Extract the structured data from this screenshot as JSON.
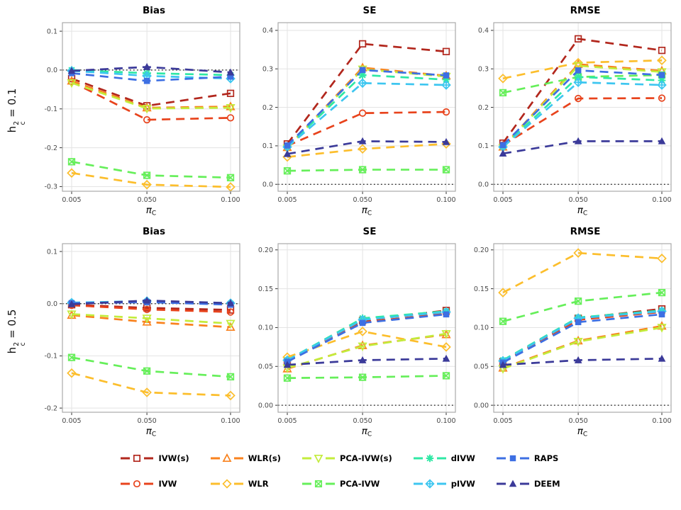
{
  "row_labels": [
    {
      "base": "h",
      "sup": "2",
      "sub": "c",
      "rest": "= 0.1"
    },
    {
      "base": "h",
      "sup": "2",
      "sub": "c",
      "rest": "= 0.5"
    }
  ],
  "x_axis": {
    "label_base": "π",
    "label_sub": "C",
    "tick_values": [
      0.005,
      0.05,
      0.1
    ],
    "tick_labels": [
      "0.005",
      "0.050",
      "0.100"
    ]
  },
  "methods": [
    {
      "id": "ivw-s",
      "label": "IVW(s)",
      "color": "#B2271D",
      "marker": "square-open"
    },
    {
      "id": "ivw",
      "label": "IVW",
      "color": "#E8431C",
      "marker": "circle-open"
    },
    {
      "id": "wlr-s",
      "label": "WLR(s)",
      "color": "#F9821E",
      "marker": "triangle-open"
    },
    {
      "id": "wlr",
      "label": "WLR",
      "color": "#FCBE2C",
      "marker": "diamond-open"
    },
    {
      "id": "pca-ivw-s",
      "label": "PCA-IVW(s)",
      "color": "#C3EC3C",
      "marker": "triangle-down-open"
    },
    {
      "id": "pca-ivw",
      "label": "PCA-IVW",
      "color": "#66EF5A",
      "marker": "square-x"
    },
    {
      "id": "divw",
      "label": "dIVW",
      "color": "#2FE8A5",
      "marker": "asterisk"
    },
    {
      "id": "pivw",
      "label": "pIVW",
      "color": "#3DC6F0",
      "marker": "diamond-plus"
    },
    {
      "id": "raps",
      "label": "RAPS",
      "color": "#3D6FE3",
      "marker": "square-filled"
    },
    {
      "id": "deem",
      "label": "DEEM",
      "color": "#3B3A99",
      "marker": "triangle-filled"
    }
  ],
  "legend": {
    "columns": [
      [
        "IVW(s)",
        "IVW"
      ],
      [
        "WLR(s)",
        "WLR"
      ],
      [
        "PCA-IVW(s)",
        "PCA-IVW"
      ],
      [
        "dIVW",
        "pIVW"
      ],
      [
        "RAPS",
        "DEEM"
      ]
    ]
  },
  "chart_data": [
    {
      "type": "line",
      "title": "Bias",
      "row": "h_c^2 = 0.1",
      "xlabel": "pi_C",
      "x": [
        0.005,
        0.05,
        0.1
      ],
      "ylim": [
        -0.312,
        0.122
      ],
      "yticks": [
        0.1,
        0.0,
        -0.1,
        -0.2,
        -0.3
      ],
      "ytick_labels": [
        "0.1",
        "0.0",
        "-0.1",
        "-0.2",
        "-0.3"
      ],
      "zero_line": true,
      "grid": true,
      "legend_position": "bottom",
      "series": [
        {
          "name": "IVW(s)",
          "values": [
            -0.022,
            -0.092,
            -0.06
          ]
        },
        {
          "name": "IVW",
          "values": [
            -0.03,
            -0.128,
            -0.123
          ]
        },
        {
          "name": "WLR(s)",
          "values": [
            -0.028,
            -0.097,
            -0.094
          ]
        },
        {
          "name": "WLR",
          "values": [
            -0.265,
            -0.295,
            -0.301
          ]
        },
        {
          "name": "PCA-IVW(s)",
          "values": [
            -0.033,
            -0.099,
            -0.097
          ]
        },
        {
          "name": "PCA-IVW",
          "values": [
            -0.236,
            -0.271,
            -0.277
          ]
        },
        {
          "name": "dIVW",
          "values": [
            0.0,
            -0.008,
            -0.013
          ]
        },
        {
          "name": "pIVW",
          "values": [
            -0.002,
            -0.015,
            -0.022
          ]
        },
        {
          "name": "RAPS",
          "values": [
            -0.008,
            -0.028,
            -0.017
          ]
        },
        {
          "name": "DEEM",
          "values": [
            -0.002,
            0.008,
            -0.006
          ]
        }
      ]
    },
    {
      "type": "line",
      "title": "SE",
      "row": "h_c^2 = 0.1",
      "xlabel": "pi_C",
      "x": [
        0.005,
        0.05,
        0.1
      ],
      "ylim": [
        -0.018,
        0.42
      ],
      "yticks": [
        0.4,
        0.3,
        0.2,
        0.1,
        0.0
      ],
      "ytick_labels": [
        "0.4",
        "0.3",
        "0.2",
        "0.1",
        "0.0"
      ],
      "zero_line": true,
      "grid": true,
      "legend_position": "bottom",
      "series": [
        {
          "name": "IVW(s)",
          "values": [
            0.105,
            0.365,
            0.345
          ]
        },
        {
          "name": "IVW",
          "values": [
            0.1,
            0.185,
            0.188
          ]
        },
        {
          "name": "WLR(s)",
          "values": [
            0.096,
            0.303,
            0.282
          ]
        },
        {
          "name": "WLR",
          "values": [
            0.071,
            0.092,
            0.105
          ]
        },
        {
          "name": "PCA-IVW(s)",
          "values": [
            0.094,
            0.299,
            0.28
          ]
        },
        {
          "name": "PCA-IVW",
          "values": [
            0.035,
            0.038,
            0.038
          ]
        },
        {
          "name": "dIVW",
          "values": [
            0.098,
            0.284,
            0.272
          ]
        },
        {
          "name": "pIVW",
          "values": [
            0.097,
            0.263,
            0.258
          ]
        },
        {
          "name": "RAPS",
          "values": [
            0.101,
            0.297,
            0.283
          ]
        },
        {
          "name": "DEEM",
          "values": [
            0.079,
            0.112,
            0.11
          ]
        }
      ]
    },
    {
      "type": "line",
      "title": "RMSE",
      "row": "h_c^2 = 0.1",
      "xlabel": "pi_C",
      "x": [
        0.005,
        0.05,
        0.1
      ],
      "ylim": [
        -0.018,
        0.42
      ],
      "yticks": [
        0.4,
        0.3,
        0.2,
        0.1,
        0.0
      ],
      "ytick_labels": [
        "0.4",
        "0.3",
        "0.2",
        "0.1",
        "0.0"
      ],
      "zero_line": true,
      "grid": true,
      "legend_position": "bottom",
      "series": [
        {
          "name": "IVW(s)",
          "values": [
            0.107,
            0.378,
            0.348
          ]
        },
        {
          "name": "IVW",
          "values": [
            0.102,
            0.223,
            0.224
          ]
        },
        {
          "name": "WLR(s)",
          "values": [
            0.097,
            0.312,
            0.295
          ]
        },
        {
          "name": "WLR",
          "values": [
            0.275,
            0.316,
            0.322
          ]
        },
        {
          "name": "PCA-IVW(s)",
          "values": [
            0.095,
            0.308,
            0.292
          ]
        },
        {
          "name": "PCA-IVW",
          "values": [
            0.238,
            0.279,
            0.284
          ]
        },
        {
          "name": "dIVW",
          "values": [
            0.098,
            0.279,
            0.27
          ]
        },
        {
          "name": "pIVW",
          "values": [
            0.097,
            0.265,
            0.258
          ]
        },
        {
          "name": "RAPS",
          "values": [
            0.102,
            0.296,
            0.284
          ]
        },
        {
          "name": "DEEM",
          "values": [
            0.08,
            0.112,
            0.112
          ]
        }
      ]
    },
    {
      "type": "line",
      "title": "Bias",
      "row": "h_c^2 = 0.5",
      "xlabel": "pi_C",
      "x": [
        0.005,
        0.05,
        0.1
      ],
      "ylim": [
        -0.208,
        0.115
      ],
      "yticks": [
        0.1,
        0.0,
        -0.1,
        -0.2
      ],
      "ytick_labels": [
        "0.1",
        "0.0",
        "-0.1",
        "-0.2"
      ],
      "zero_line": true,
      "grid": true,
      "legend_position": "bottom",
      "series": [
        {
          "name": "IVW(s)",
          "values": [
            -0.002,
            -0.008,
            -0.012
          ]
        },
        {
          "name": "IVW",
          "values": [
            -0.003,
            -0.011,
            -0.016
          ]
        },
        {
          "name": "WLR(s)",
          "values": [
            -0.022,
            -0.035,
            -0.045
          ]
        },
        {
          "name": "WLR",
          "values": [
            -0.133,
            -0.17,
            -0.176
          ]
        },
        {
          "name": "PCA-IVW(s)",
          "values": [
            -0.02,
            -0.028,
            -0.038
          ]
        },
        {
          "name": "PCA-IVW",
          "values": [
            -0.103,
            -0.129,
            -0.14
          ]
        },
        {
          "name": "dIVW",
          "values": [
            0.001,
            0.004,
            0.0
          ]
        },
        {
          "name": "pIVW",
          "values": [
            0.002,
            0.005,
            0.001
          ]
        },
        {
          "name": "RAPS",
          "values": [
            0.001,
            0.003,
            -0.002
          ]
        },
        {
          "name": "DEEM",
          "values": [
            -0.001,
            0.006,
            0.001
          ]
        }
      ]
    },
    {
      "type": "line",
      "title": "SE",
      "row": "h_c^2 = 0.5",
      "xlabel": "pi_C",
      "x": [
        0.005,
        0.05,
        0.1
      ],
      "ylim": [
        -0.009,
        0.208
      ],
      "yticks": [
        0.2,
        0.15,
        0.1,
        0.05,
        0.0
      ],
      "ytick_labels": [
        "0.20",
        "0.15",
        "0.10",
        "0.05",
        "0.00"
      ],
      "zero_line": true,
      "grid": true,
      "legend_position": "bottom",
      "series": [
        {
          "name": "IVW(s)",
          "values": [
            0.057,
            0.109,
            0.122
          ]
        },
        {
          "name": "IVW",
          "values": [
            0.056,
            0.107,
            0.118
          ]
        },
        {
          "name": "WLR(s)",
          "values": [
            0.047,
            0.077,
            0.091
          ]
        },
        {
          "name": "WLR",
          "values": [
            0.062,
            0.095,
            0.075
          ]
        },
        {
          "name": "PCA-IVW(s)",
          "values": [
            0.048,
            0.076,
            0.092
          ]
        },
        {
          "name": "PCA-IVW",
          "values": [
            0.035,
            0.036,
            0.038
          ]
        },
        {
          "name": "dIVW",
          "values": [
            0.058,
            0.112,
            0.121
          ]
        },
        {
          "name": "pIVW",
          "values": [
            0.058,
            0.11,
            0.12
          ]
        },
        {
          "name": "RAPS",
          "values": [
            0.056,
            0.106,
            0.117
          ]
        },
        {
          "name": "DEEM",
          "values": [
            0.052,
            0.058,
            0.06
          ]
        }
      ]
    },
    {
      "type": "line",
      "title": "RMSE",
      "row": "h_c^2 = 0.5",
      "xlabel": "pi_C",
      "x": [
        0.005,
        0.05,
        0.1
      ],
      "ylim": [
        -0.009,
        0.208
      ],
      "yticks": [
        0.2,
        0.15,
        0.1,
        0.05,
        0.0
      ],
      "ytick_labels": [
        "0.20",
        "0.15",
        "0.10",
        "0.05",
        "0.00"
      ],
      "zero_line": true,
      "grid": true,
      "legend_position": "bottom",
      "series": [
        {
          "name": "IVW(s)",
          "values": [
            0.056,
            0.112,
            0.124
          ]
        },
        {
          "name": "IVW",
          "values": [
            0.055,
            0.11,
            0.12
          ]
        },
        {
          "name": "WLR(s)",
          "values": [
            0.048,
            0.083,
            0.102
          ]
        },
        {
          "name": "WLR",
          "values": [
            0.145,
            0.196,
            0.189
          ]
        },
        {
          "name": "PCA-IVW(s)",
          "values": [
            0.047,
            0.082,
            0.1
          ]
        },
        {
          "name": "PCA-IVW",
          "values": [
            0.108,
            0.134,
            0.145
          ]
        },
        {
          "name": "dIVW",
          "values": [
            0.058,
            0.113,
            0.122
          ]
        },
        {
          "name": "pIVW",
          "values": [
            0.057,
            0.112,
            0.121
          ]
        },
        {
          "name": "RAPS",
          "values": [
            0.055,
            0.107,
            0.117
          ]
        },
        {
          "name": "DEEM",
          "values": [
            0.052,
            0.058,
            0.06
          ]
        }
      ]
    }
  ],
  "style_colors": {
    "grid_line": "#E3E3E3",
    "panel_border": "#ABABAB",
    "tick_text": "#4a4a4a",
    "zero_line": "#111111"
  }
}
